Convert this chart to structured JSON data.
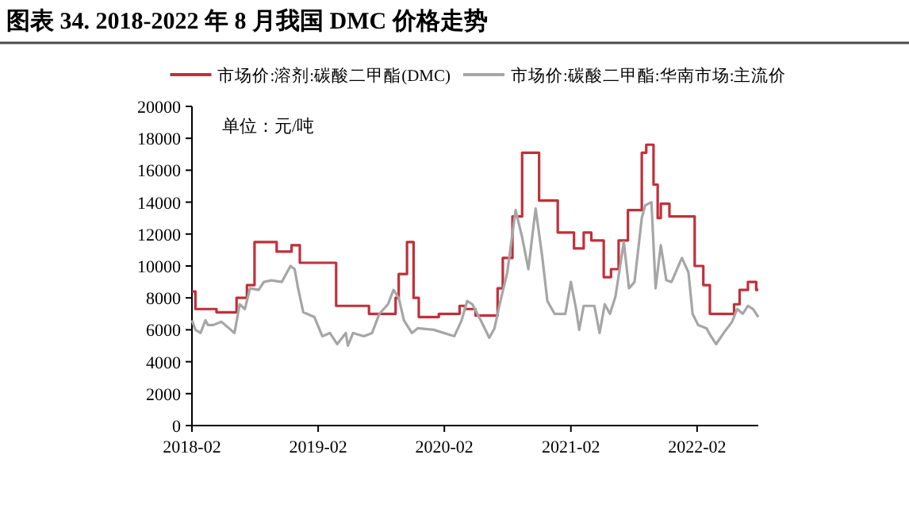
{
  "chart_data": {
    "type": "line",
    "title": "图表 34. 2018-2022 年 8 月我国 DMC 价格走势",
    "annotations": [
      "单位：元/吨"
    ],
    "legend": "top",
    "grid": false,
    "xlim": [
      "2018-02-01",
      "2022-07-28"
    ],
    "xticks": [
      "2018-02",
      "2019-02",
      "2020-02",
      "2021-02",
      "2022-02"
    ],
    "ylim": [
      0,
      20000
    ],
    "yticks": [
      0,
      2000,
      4000,
      6000,
      8000,
      10000,
      12000,
      14000,
      16000,
      18000,
      20000
    ],
    "series": [
      {
        "name": "市场价:溶剂:碳酸二甲酯(DMC)",
        "type": "step",
        "color": "#c0303a",
        "x": [
          "2018-02-01",
          "2018-02-11",
          "2018-04-13",
          "2018-06-10",
          "2018-07-10",
          "2018-08-01",
          "2018-10-04",
          "2018-11-16",
          "2018-12-10",
          "2019-03-25",
          "2019-06-28",
          "2019-09-13",
          "2019-09-22",
          "2019-10-16",
          "2019-11-04",
          "2019-11-19",
          "2020-01-16",
          "2020-03-16",
          "2020-04-01",
          "2020-05-01",
          "2020-07-04",
          "2020-07-19",
          "2020-08-16",
          "2020-09-13",
          "2020-11-01",
          "2020-12-25",
          "2021-02-10",
          "2021-03-10",
          "2021-04-01",
          "2021-05-07",
          "2021-05-28",
          "2021-06-19",
          "2021-07-16",
          "2021-08-25",
          "2021-09-07",
          "2021-09-28",
          "2021-10-10",
          "2021-10-19",
          "2021-11-13",
          "2022-01-25",
          "2022-02-19",
          "2022-03-10",
          "2022-05-19",
          "2022-06-04",
          "2022-06-28",
          "2022-07-22",
          "2022-07-28"
        ],
        "values": [
          8400,
          7300,
          7100,
          8000,
          8800,
          11500,
          10900,
          11300,
          10200,
          7500,
          7000,
          8000,
          9500,
          11500,
          8000,
          6800,
          7000,
          7500,
          7300,
          6900,
          8600,
          10500,
          13100,
          17100,
          14100,
          12100,
          11100,
          12100,
          11600,
          9300,
          9800,
          11600,
          13500,
          17100,
          17600,
          15100,
          13000,
          13900,
          13100,
          10000,
          8800,
          7000,
          7600,
          8500,
          9000,
          8500,
          8500
        ]
      },
      {
        "name": "市场价:碳酸二甲酯:华南市场:主流价",
        "type": "line",
        "color": "#a6a6a6",
        "x": [
          "2018-02-01",
          "2018-02-11",
          "2018-02-26",
          "2018-03-12",
          "2018-03-19",
          "2018-04-04",
          "2018-04-27",
          "2018-05-19",
          "2018-06-04",
          "2018-06-19",
          "2018-07-04",
          "2018-07-19",
          "2018-08-13",
          "2018-08-28",
          "2018-09-19",
          "2018-10-19",
          "2018-11-13",
          "2018-11-25",
          "2018-12-05",
          "2018-12-20",
          "2019-01-21",
          "2019-02-13",
          "2019-03-07",
          "2019-03-28",
          "2019-04-22",
          "2019-04-28",
          "2019-05-13",
          "2019-06-13",
          "2019-07-07",
          "2019-07-28",
          "2019-08-22",
          "2019-09-07",
          "2019-09-22",
          "2019-10-07",
          "2019-10-30",
          "2019-11-16",
          "2020-01-01",
          "2020-03-01",
          "2020-03-22",
          "2020-04-07",
          "2020-04-22",
          "2020-05-16",
          "2020-06-10",
          "2020-06-25",
          "2020-07-10",
          "2020-08-01",
          "2020-08-25",
          "2020-09-13",
          "2020-10-01",
          "2020-10-22",
          "2020-11-10",
          "2020-11-25",
          "2020-12-16",
          "2021-01-16",
          "2021-02-01",
          "2021-02-16",
          "2021-02-25",
          "2021-03-10",
          "2021-04-10",
          "2021-04-25",
          "2021-05-10",
          "2021-05-25",
          "2021-06-10",
          "2021-07-04",
          "2021-07-19",
          "2021-08-04",
          "2021-08-25",
          "2021-09-04",
          "2021-09-22",
          "2021-10-04",
          "2021-10-19",
          "2021-11-04",
          "2021-11-19",
          "2021-12-19",
          "2022-01-07",
          "2022-01-19",
          "2022-02-04",
          "2022-02-28",
          "2022-03-13",
          "2022-03-28",
          "2022-04-19",
          "2022-05-13",
          "2022-05-28",
          "2022-06-13",
          "2022-06-28",
          "2022-07-13",
          "2022-07-28"
        ],
        "values": [
          6600,
          6000,
          5800,
          6600,
          6300,
          6300,
          6500,
          6100,
          5800,
          7600,
          7300,
          8600,
          8500,
          9000,
          9100,
          9000,
          10000,
          9800,
          8600,
          7100,
          6800,
          5600,
          5800,
          5100,
          5800,
          5000,
          5800,
          5600,
          5800,
          7000,
          7600,
          8500,
          8000,
          6600,
          5800,
          6100,
          6000,
          5600,
          6600,
          7800,
          7600,
          6600,
          5500,
          6100,
          7600,
          9600,
          13500,
          11800,
          9800,
          13600,
          10600,
          7800,
          7000,
          7000,
          9000,
          7300,
          6000,
          7500,
          7500,
          5800,
          7600,
          7000,
          8100,
          11500,
          8600,
          9000,
          13000,
          13800,
          14000,
          8600,
          11300,
          9100,
          9000,
          10500,
          9600,
          7000,
          6300,
          6100,
          5600,
          5100,
          5800,
          6500,
          7300,
          7000,
          7500,
          7300,
          6800
        ]
      }
    ]
  }
}
